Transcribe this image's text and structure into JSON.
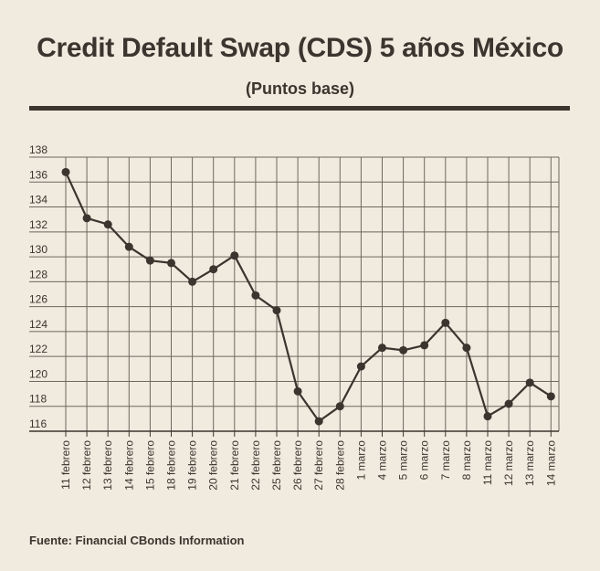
{
  "title": "Credit Default Swap (CDS) 5 años México",
  "subtitle": "(Puntos base)",
  "source": "Fuente: Financial CBonds Information",
  "colors": {
    "background": "#f0eadf",
    "ink": "#3a352e",
    "grid": "#6d675e"
  },
  "chart_data": {
    "type": "line",
    "title": "Credit Default Swap (CDS) 5 años México",
    "subtitle": "(Puntos base)",
    "xlabel": "",
    "ylabel": "",
    "categories": [
      "11 febrero",
      "12 febrero",
      "13 febrero",
      "14 febrero",
      "15 febrero",
      "18 febrero",
      "19 febrero",
      "20 febrero",
      "21 febrero",
      "22 febrero",
      "25 febrero",
      "26 febrero",
      "27 febrero",
      "28 febrero",
      "1 marzo",
      "4 marzo",
      "5 marzo",
      "6 marzo",
      "7 marzo",
      "8 marzo",
      "11 marzo",
      "12 marzo",
      "13 marzo",
      "14 marzo"
    ],
    "values": [
      136.8,
      133.1,
      132.6,
      130.8,
      129.7,
      129.5,
      128.0,
      129.0,
      130.1,
      126.9,
      125.7,
      119.2,
      116.8,
      118.0,
      121.2,
      122.7,
      122.5,
      122.9,
      124.7,
      122.7,
      117.2,
      118.2,
      119.9,
      118.8
    ],
    "ylim": [
      116,
      138
    ],
    "yticks": [
      116,
      118,
      120,
      122,
      124,
      126,
      128,
      130,
      132,
      134,
      136,
      138
    ],
    "grid": true,
    "legend": "none"
  }
}
